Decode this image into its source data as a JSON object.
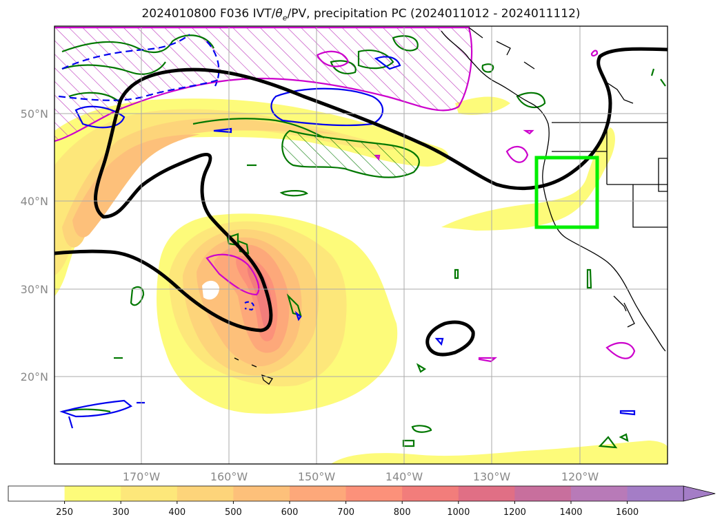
{
  "title": {
    "prefix": "2024010800 F036 IVT/",
    "theta_symbol": "θ",
    "theta_sub": "e",
    "suffix": "/PV, precipitation PC (2024011012 - 2024011112)"
  },
  "map": {
    "lat_ticks": [
      "50°N",
      "40°N",
      "30°N",
      "20°N"
    ],
    "lon_ticks": [
      "170°W",
      "160°W",
      "150°W",
      "140°W",
      "130°W",
      "120°W"
    ],
    "gridlines": true,
    "box_color": "#00ee00",
    "contour_colors": {
      "theta_e": "#000000",
      "pv": "#0000ee",
      "green": "#007700",
      "magenta": "#cc00cc"
    }
  },
  "colorbar": {
    "levels": [
      "250",
      "300",
      "400",
      "500",
      "600",
      "700",
      "800",
      "1000",
      "1200",
      "1400",
      "1600"
    ],
    "colors": [
      "#ffffff",
      "#fdfb7a",
      "#fde77a",
      "#fdd47a",
      "#fdc07a",
      "#fda87a",
      "#fc917a",
      "#f27d7b",
      "#e06f85",
      "#c86f9d",
      "#b87ab8",
      "#a47dc6"
    ],
    "extend": "max"
  }
}
